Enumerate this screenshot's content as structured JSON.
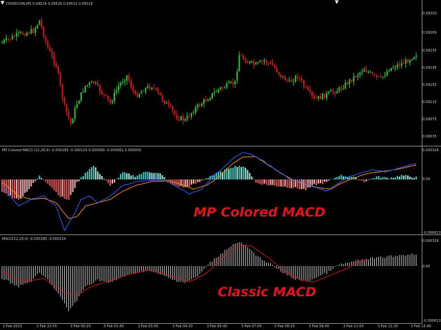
{
  "price_panel": {
    "header": "DOGECOIN,M5  0.09514 0.09520 0.09512 0.09518",
    "y_labels": [
      "0.09303",
      "0.09269",
      "0.09235",
      "0.09195",
      "0.09155",
      "0.09115",
      "0.09075",
      "0.09035"
    ]
  },
  "mp_panel": {
    "header": "MP Colored MACD (12,26,9) -0.000185 -0.000124 0.000000 -0.000061 0.000000",
    "y_labels": [
      "0.000326",
      "0.00",
      "-0.000613"
    ]
  },
  "macd_panel": {
    "header": "MACD(12,26,9) -0.000185 -0.000124",
    "y_labels": [
      "0.000326",
      "0.00",
      "-0.000613"
    ]
  },
  "x_labels": [
    "2 Feb 2023",
    "2 Feb 22:55",
    "3 Feb 00:20",
    "3 Feb 01:40",
    "3 Feb 03:00",
    "3 Feb 04:20",
    "3 Feb 05:40",
    "3 Feb 07:00",
    "3 Feb 08:20",
    "3 Feb 09:40",
    "3 Feb 11:00",
    "3 Feb 12:20",
    "3 Feb 13:40"
  ],
  "overlays": {
    "mp_title": "MP Colored MACD",
    "classic_title": "Classic MACD"
  },
  "colors": {
    "bull": "#2ec43a",
    "bear": "#e01717",
    "hist_pos_strong": "#3fc9b8",
    "hist_pos_weak": "#a9e8df",
    "hist_neg_strong": "#e05757",
    "hist_neg_weak": "#f2b3b3",
    "macd_line": "#2e62ff",
    "signal_line": "#ff8a1e",
    "classic_hist": "#c8c8c8",
    "classic_signal": "#d01818",
    "overlay_text": "#e5141b"
  }
}
